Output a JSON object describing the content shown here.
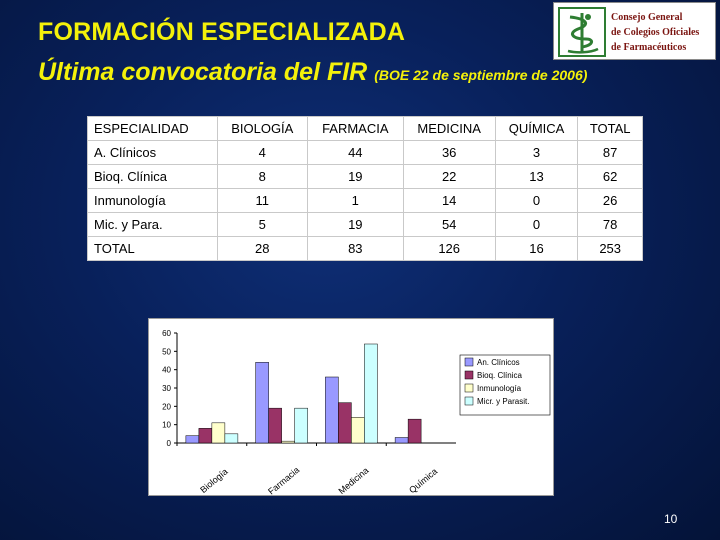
{
  "slide": {
    "title_line1": "FORMACIÓN ESPECIALIZADA",
    "title_line2": "Última convocatoria del FIR",
    "title_line2_sub": "(BOE 22 de septiembre de 2006)",
    "page_number": "10"
  },
  "logo": {
    "line1": "Consejo General",
    "line2": "de Colegios Oficiales",
    "line3": "de Farmacéuticos",
    "color": "#7a1410",
    "icon": "caduceus-icon"
  },
  "table": {
    "headers": [
      "ESPECIALIDAD",
      "BIOLOGÍA",
      "FARMACIA",
      "MEDICINA",
      "QUÍMICA",
      "TOTAL"
    ],
    "rows": [
      [
        "A. Clínicos",
        "4",
        "44",
        "36",
        "3",
        "87"
      ],
      [
        "Bioq. Clínica",
        "8",
        "19",
        "22",
        "13",
        "62"
      ],
      [
        "Inmunología",
        "11",
        "1",
        "14",
        "0",
        "26"
      ],
      [
        "Mic. y Para.",
        "5",
        "19",
        "54",
        "0",
        "78"
      ],
      [
        "TOTAL",
        "28",
        "83",
        "126",
        "16",
        "253"
      ]
    ]
  },
  "chart_data": {
    "type": "bar",
    "categories": [
      "Biología",
      "Farmacia",
      "Medicina",
      "Química"
    ],
    "series": [
      {
        "name": "An. Clínicos",
        "values": [
          4,
          44,
          36,
          3
        ],
        "color": "#9999ff"
      },
      {
        "name": "Bioq. Clínica",
        "values": [
          8,
          19,
          22,
          13
        ],
        "color": "#993366"
      },
      {
        "name": "Inmunología",
        "values": [
          11,
          1,
          14,
          0
        ],
        "color": "#ffffcc"
      },
      {
        "name": "Micr. y Parasit.",
        "values": [
          5,
          19,
          54,
          0
        ],
        "color": "#ccffff"
      }
    ],
    "y_ticks": [
      "0",
      "10",
      "20",
      "30",
      "40",
      "50",
      "60"
    ],
    "ylim": [
      0,
      60
    ],
    "legend_position": "right",
    "grid": false
  }
}
